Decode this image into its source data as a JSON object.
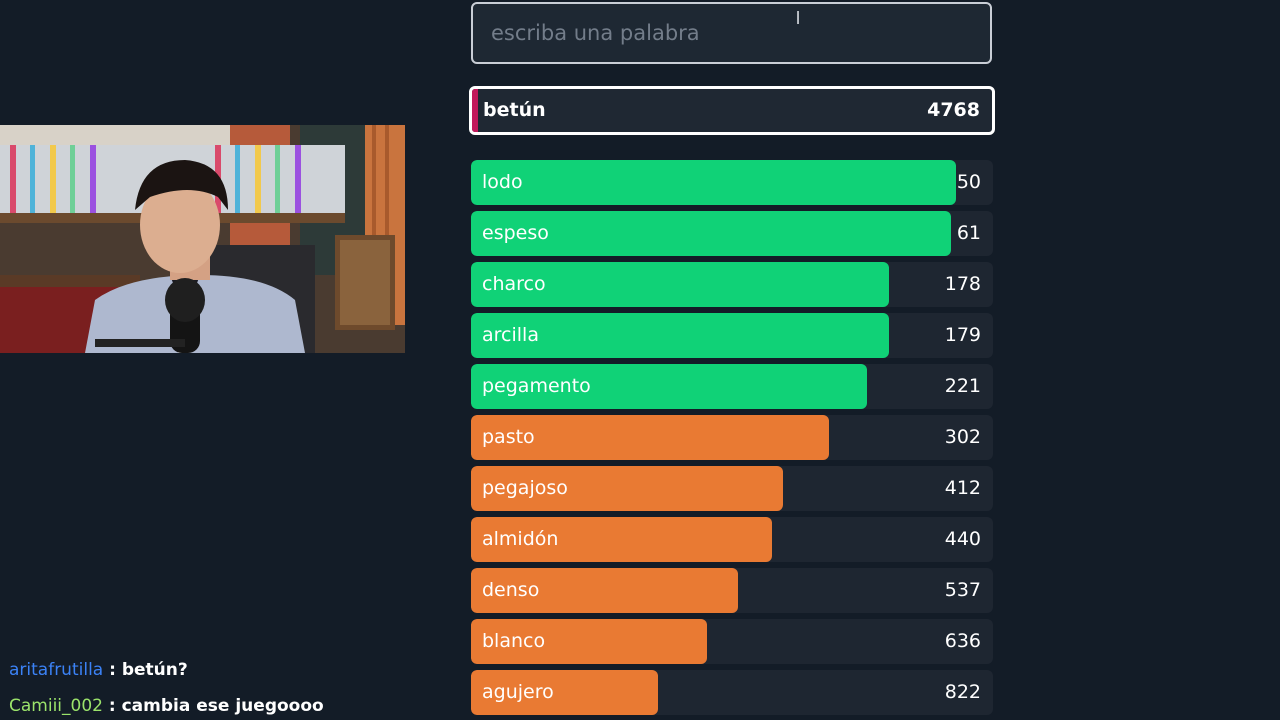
{
  "input": {
    "placeholder": "escriba una palabra",
    "value": ""
  },
  "current_guess": {
    "word": "betún",
    "rank": "4768",
    "accent_color": "#c2185b"
  },
  "colors": {
    "close": "#10d277",
    "medium": "#e97a33"
  },
  "guesses": [
    {
      "word": "lodo",
      "rank": "50",
      "closeness": 0.93,
      "tier": "close"
    },
    {
      "word": "espeso",
      "rank": "61",
      "closeness": 0.92,
      "tier": "close"
    },
    {
      "word": "charco",
      "rank": "178",
      "closeness": 0.8,
      "tier": "close"
    },
    {
      "word": "arcilla",
      "rank": "179",
      "closeness": 0.8,
      "tier": "close"
    },
    {
      "word": "pegamento",
      "rank": "221",
      "closeness": 0.758,
      "tier": "close"
    },
    {
      "word": "pasto",
      "rank": "302",
      "closeness": 0.685,
      "tier": "medium"
    },
    {
      "word": "pegajoso",
      "rank": "412",
      "closeness": 0.598,
      "tier": "medium"
    },
    {
      "word": "almidón",
      "rank": "440",
      "closeness": 0.577,
      "tier": "medium"
    },
    {
      "word": "denso",
      "rank": "537",
      "closeness": 0.511,
      "tier": "medium"
    },
    {
      "word": "blanco",
      "rank": "636",
      "closeness": 0.452,
      "tier": "medium"
    },
    {
      "word": "agujero",
      "rank": "822",
      "closeness": 0.358,
      "tier": "medium"
    }
  ],
  "chat": [
    {
      "user": "aritafrutilla",
      "user_color": "#3b82f6",
      "separator": " : ",
      "message": "betún?"
    },
    {
      "user": "Camiii_002",
      "user_color": "#9be36b",
      "separator": " : ",
      "message": "cambia ese juegoooo"
    }
  ]
}
